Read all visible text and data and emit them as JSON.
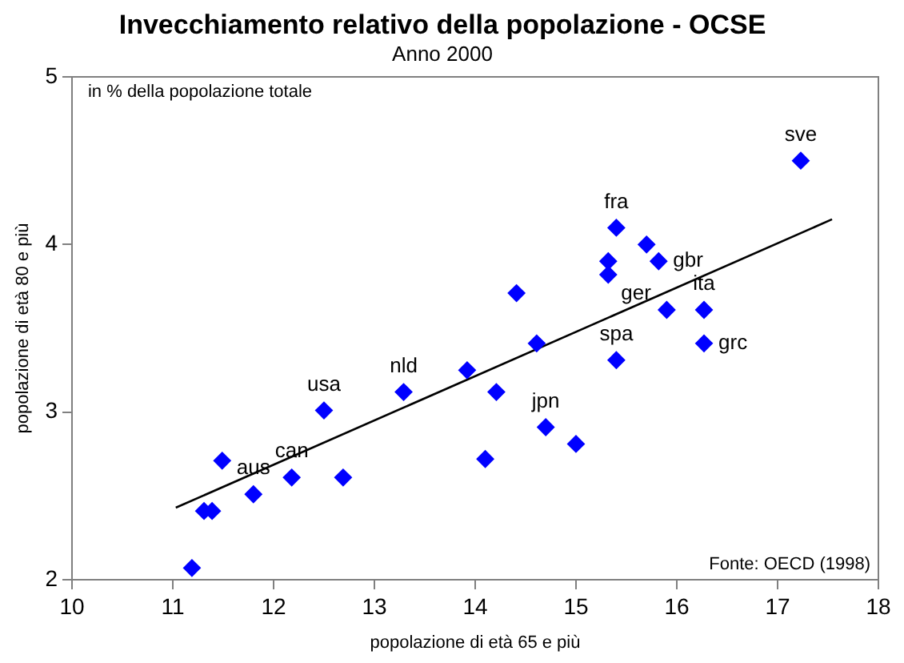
{
  "chart_data": {
    "type": "scatter",
    "title": "Invecchiamento relativo della popolazione - OCSE",
    "subtitle": "Anno 2000",
    "xlabel": "popolazione di età 65 e più",
    "ylabel": "popolazione di età 80 e più",
    "xlim": [
      10,
      18
    ],
    "xticks": [
      10,
      11,
      12,
      13,
      14,
      15,
      16,
      17,
      18
    ],
    "ylim": [
      2,
      5
    ],
    "yticks": [
      2,
      3,
      4,
      5
    ],
    "grid": false,
    "legend": false,
    "marker": "diamond",
    "series": [
      {
        "color": "#0000ff",
        "x": [
          11.19,
          11.31,
          11.39,
          11.49,
          11.8,
          12.18,
          12.5,
          12.69,
          13.29,
          13.92,
          14.21,
          14.1,
          14.41,
          14.61,
          14.7,
          15.0,
          15.4,
          15.32,
          15.32,
          15.4,
          15.7,
          15.82,
          15.9,
          16.27,
          16.27,
          17.23
        ],
        "values": [
          2.07,
          2.41,
          2.41,
          2.71,
          2.51,
          2.61,
          3.01,
          2.61,
          3.12,
          3.25,
          3.12,
          2.72,
          3.71,
          3.41,
          2.91,
          2.81,
          4.1,
          3.9,
          3.82,
          3.31,
          4.0,
          3.9,
          3.61,
          3.61,
          3.41,
          4.5
        ]
      },
      {
        "type": "line",
        "color": "#000000",
        "line_style": "solid",
        "marker": "none",
        "x": [
          11.03,
          17.54
        ],
        "values": [
          2.43,
          4.15
        ]
      }
    ],
    "annotations": [
      "in % della popolazione totale",
      "Fonte: OECD (1998)",
      {
        "text": "usa",
        "x": 12.5,
        "y": 3.01
      },
      {
        "text": "nld",
        "x": 13.29,
        "y": 3.12
      },
      {
        "text": "aus",
        "x": 11.8,
        "y": 2.51
      },
      {
        "text": "can",
        "x": 12.18,
        "y": 2.61
      },
      {
        "text": "jpn",
        "x": 14.7,
        "y": 2.91
      },
      {
        "text": "fra",
        "x": 15.4,
        "y": 4.1
      },
      {
        "text": "gbr",
        "x": 15.82,
        "y": 3.9
      },
      {
        "text": "ger",
        "x": 15.32,
        "y": 3.82
      },
      {
        "text": "ita",
        "x": 16.27,
        "y": 3.61
      },
      {
        "text": "spa",
        "x": 15.4,
        "y": 3.31
      },
      {
        "text": "grc",
        "x": 16.27,
        "y": 3.41
      },
      {
        "text": "sve",
        "x": 17.23,
        "y": 4.5
      }
    ]
  }
}
